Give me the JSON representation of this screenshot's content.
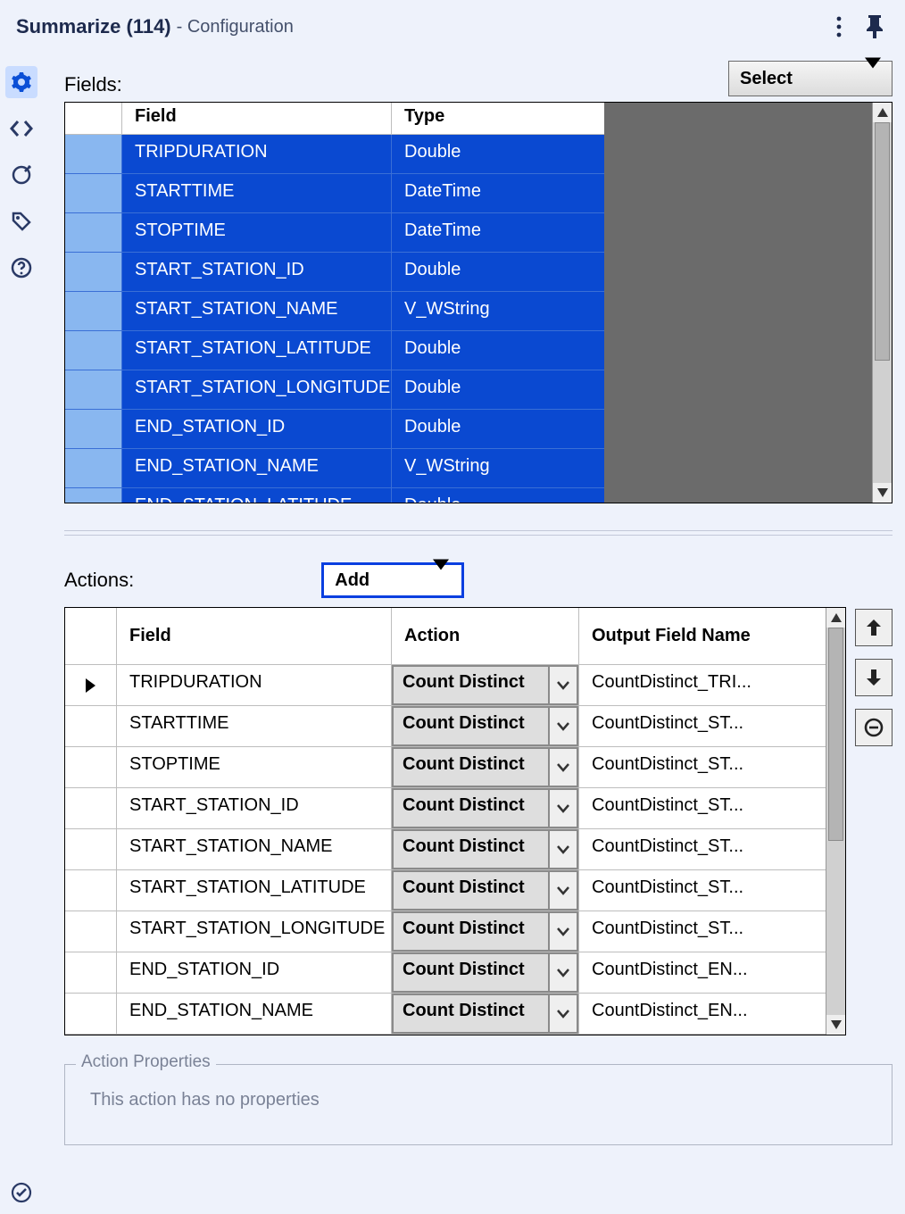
{
  "header": {
    "title": "Summarize (114)",
    "subtitle": "- Configuration"
  },
  "sidebar_icons": {
    "config": "gear-icon",
    "xml": "code-icon",
    "annotations": "target-icon",
    "tags": "tag-icon",
    "help": "help-icon",
    "status": "check-icon"
  },
  "fields_section": {
    "label": "Fields:",
    "select_button_label": "Select",
    "columns": {
      "field": "Field",
      "type": "Type"
    },
    "rows": [
      {
        "field": "TRIPDURATION",
        "type": "Double"
      },
      {
        "field": "STARTTIME",
        "type": "DateTime"
      },
      {
        "field": "STOPTIME",
        "type": "DateTime"
      },
      {
        "field": "START_STATION_ID",
        "type": "Double"
      },
      {
        "field": "START_STATION_NAME",
        "type": "V_WString"
      },
      {
        "field": "START_STATION_LATITUDE",
        "type": "Double"
      },
      {
        "field": "START_STATION_LONGITUDE",
        "type": "Double"
      },
      {
        "field": "END_STATION_ID",
        "type": "Double"
      },
      {
        "field": "END_STATION_NAME",
        "type": "V_WString"
      },
      {
        "field": "END_STATION_LATITUDE",
        "type": "Double"
      }
    ]
  },
  "actions_section": {
    "label": "Actions:",
    "add_button_label": "Add",
    "columns": {
      "field": "Field",
      "action": "Action",
      "output": "Output Field Name"
    },
    "rows": [
      {
        "field": "TRIPDURATION",
        "action": "Count Distinct",
        "output": "CountDistinct_TRI..."
      },
      {
        "field": "STARTTIME",
        "action": "Count Distinct",
        "output": "CountDistinct_ST..."
      },
      {
        "field": "STOPTIME",
        "action": "Count Distinct",
        "output": "CountDistinct_ST..."
      },
      {
        "field": "START_STATION_ID",
        "action": "Count Distinct",
        "output": "CountDistinct_ST..."
      },
      {
        "field": "START_STATION_NAME",
        "action": "Count Distinct",
        "output": "CountDistinct_ST..."
      },
      {
        "field": "START_STATION_LATITUDE",
        "action": "Count Distinct",
        "output": "CountDistinct_ST..."
      },
      {
        "field": "START_STATION_LONGITUDE",
        "action": "Count Distinct",
        "output": "CountDistinct_ST..."
      },
      {
        "field": "END_STATION_ID",
        "action": "Count Distinct",
        "output": "CountDistinct_EN..."
      },
      {
        "field": "END_STATION_NAME",
        "action": "Count Distinct",
        "output": "CountDistinct_EN..."
      }
    ],
    "current_row_index": 0
  },
  "action_properties": {
    "legend": "Action Properties",
    "message": "This action has no properties"
  },
  "colors": {
    "panel_bg": "#eef2fb",
    "selected_row_bg": "#0a49d1",
    "selected_row_fg": "#ffffff",
    "row_gutter_bg": "#89b7f0",
    "grid_filler_bg": "#6b6b6b",
    "add_border": "#0a3fe0",
    "action_cell_bg": "#dedede"
  }
}
